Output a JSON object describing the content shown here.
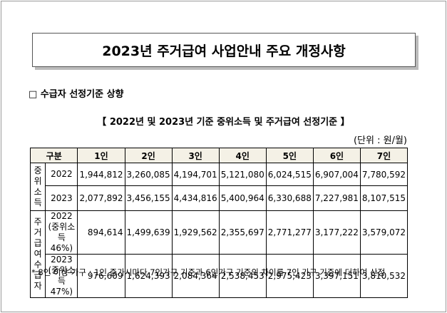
{
  "title": "2023년 주거급여 사업안내 주요 개정사항",
  "section": "□ 수급자 선정기준 상향",
  "table": {
    "caption": "【 2022년 및 2023년 기준 중위소득 및 주거급여 선정기준 】",
    "unit": "(단위 : 원/월)",
    "header": [
      "구분",
      "1인",
      "2인",
      "3인",
      "4인",
      "5인",
      "6인",
      "7인"
    ],
    "groups": [
      {
        "label": [
          "중위",
          "소득"
        ],
        "rows": [
          {
            "year": "2022",
            "values": [
              "1,944,812",
              "3,260,085",
              "4,194,701",
              "5,121,080",
              "6,024,515",
              "6,907,004",
              "7,780,592"
            ]
          },
          {
            "year": "2023",
            "values": [
              "2,077,892",
              "3,456,155",
              "4,434,816",
              "5,400,964",
              "6,330,688",
              "7,227,981",
              "8,107,515"
            ]
          }
        ]
      },
      {
        "label": [
          "주거",
          "급여",
          "수급자"
        ],
        "rows": [
          {
            "year": "2022",
            "note": "(중위소득 46%)",
            "values": [
              "894,614",
              "1,499,639",
              "1,929,562",
              "2,355,697",
              "2,771,277",
              "3,177,222",
              "3,579,072"
            ]
          },
          {
            "year": "2023",
            "note": "(중위소득 47%)",
            "values": [
              "976,609",
              "1,624,393",
              "2,084,364",
              "2,538,453",
              "2,975,423",
              "3,397,151",
              "3,810,532"
            ]
          }
        ]
      }
    ]
  },
  "footnote": "* 8인 이상 가구 : 1인 증가시마다 7인가구 기준과 6인가구 기준의 차이를 7인 가구 기준에 더하여 산정"
}
